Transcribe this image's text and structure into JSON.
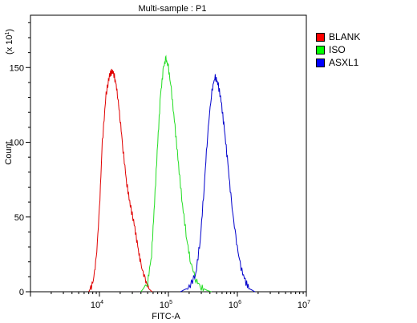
{
  "chart_data": {
    "type": "area",
    "title": "Multi-sample : P1",
    "xlabel": "FITC-A",
    "ylabel": "Count",
    "y_multiplier_label": "(x 10",
    "y_multiplier_exponent": "1",
    "x_scale": "log",
    "xlim": [
      1000,
      10000000
    ],
    "ylim": [
      0,
      185
    ],
    "y_ticks": [
      0,
      50,
      100,
      150
    ],
    "x_tick_labels": [
      {
        "base": "10",
        "exp": "4",
        "value": 10000
      },
      {
        "base": "10",
        "exp": "5",
        "value": 100000
      },
      {
        "base": "10",
        "exp": "6",
        "value": 1000000
      },
      {
        "base": "10",
        "exp": "7",
        "value": 10000000
      }
    ],
    "legend_position": "right",
    "grid": false,
    "series": [
      {
        "name": "BLANK",
        "color": "#e00000",
        "swatch": "#ff0000",
        "x": [
          7000,
          8000,
          9000,
          10000,
          11000,
          12500,
          14000,
          15500,
          17000,
          18500,
          20000,
          22000,
          25000,
          28000,
          32000,
          36000,
          40000,
          46000,
          52000,
          58000
        ],
        "y": [
          0,
          5,
          22,
          55,
          100,
          132,
          145,
          148,
          142,
          130,
          115,
          95,
          72,
          58,
          45,
          30,
          18,
          8,
          2,
          0
        ]
      },
      {
        "name": "ISO",
        "color": "#22dd22",
        "swatch": "#00ff00",
        "x": [
          40000,
          50000,
          57000,
          63000,
          70000,
          77000,
          85000,
          92000,
          100000,
          110000,
          125000,
          140000,
          160000,
          185000,
          210000,
          250000,
          300000,
          360000,
          420000
        ],
        "y": [
          0,
          6,
          25,
          60,
          100,
          132,
          150,
          156,
          150,
          135,
          110,
          85,
          58,
          35,
          20,
          8,
          3,
          1,
          0
        ]
      },
      {
        "name": "ASXL1",
        "color": "#0000cc",
        "swatch": "#0000ff",
        "x": [
          150000,
          200000,
          250000,
          290000,
          330000,
          370000,
          420000,
          470000,
          520000,
          580000,
          650000,
          730000,
          820000,
          950000,
          1100000,
          1300000,
          1500000,
          1800000
        ],
        "y": [
          0,
          3,
          12,
          35,
          70,
          105,
          132,
          144,
          140,
          128,
          108,
          85,
          60,
          36,
          18,
          7,
          2,
          0
        ]
      }
    ]
  }
}
